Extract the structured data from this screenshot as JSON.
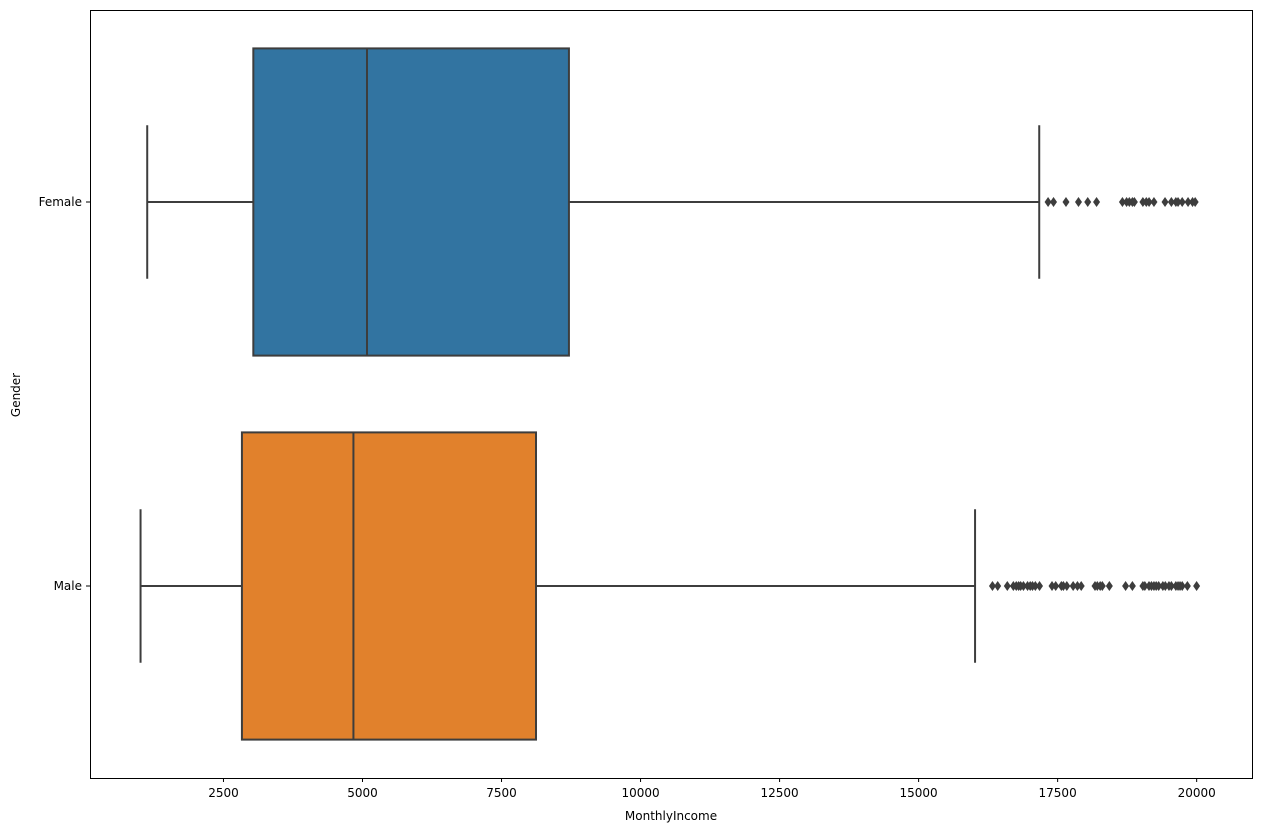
{
  "chart_data": {
    "type": "box",
    "orientation": "horizontal",
    "xlabel": "MonthlyIncome",
    "ylabel": "Gender",
    "xlim": [
      100,
      20995
    ],
    "xticks": [
      2500,
      5000,
      7500,
      10000,
      12500,
      15000,
      17500,
      20000
    ],
    "xtick_labels": [
      "2500",
      "5000",
      "7500",
      "10000",
      "12500",
      "15000",
      "17500",
      "20000"
    ],
    "grid": false,
    "legend": null,
    "categories": [
      "Female",
      "Male"
    ],
    "boxes": [
      {
        "category": "Female",
        "color": "#3274a1",
        "whisker_low": 1129,
        "q1": 3037,
        "median": 5081,
        "q3": 8712,
        "whisker_high": 17169,
        "outliers": [
          17328,
          17426,
          17650,
          17875,
          18041,
          18200,
          18665,
          18740,
          18789,
          18844,
          18880,
          19033,
          19094,
          19144,
          19232,
          19431,
          19545,
          19626,
          19665,
          19740,
          19845,
          19926,
          19973
        ]
      },
      {
        "category": "Male",
        "color": "#e1812c",
        "whisker_low": 1009,
        "q1": 2832,
        "median": 4837,
        "q3": 8120,
        "whisker_high": 16015,
        "outliers": [
          16328,
          16422,
          16595,
          16704,
          16756,
          16799,
          16835,
          16885,
          16959,
          17007,
          17048,
          17099,
          17174,
          17399,
          17465,
          17567,
          17603,
          17665,
          17779,
          17856,
          17924,
          18172,
          18213,
          18265,
          18303,
          18430,
          18722,
          18844,
          19033,
          19068,
          19143,
          19187,
          19232,
          19272,
          19317,
          19392,
          19436,
          19502,
          19545,
          19626,
          19665,
          19701,
          19740,
          19833,
          19999
        ]
      }
    ]
  }
}
